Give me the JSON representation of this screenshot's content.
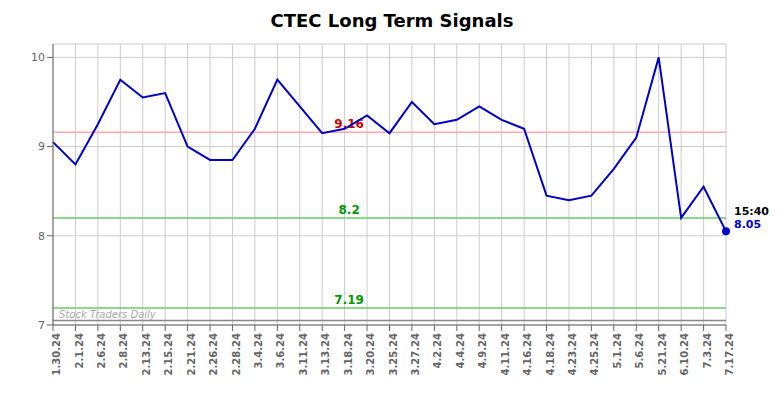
{
  "chart_data": {
    "type": "line",
    "title": "CTEC Long Term Signals",
    "categories": [
      "1.30.24",
      "2.1.24",
      "2.6.24",
      "2.8.24",
      "2.13.24",
      "2.15.24",
      "2.21.24",
      "2.26.24",
      "2.28.24",
      "3.4.24",
      "3.6.24",
      "3.11.24",
      "3.13.24",
      "3.18.24",
      "3.20.24",
      "3.25.24",
      "3.27.24",
      "4.2.24",
      "4.4.24",
      "4.9.24",
      "4.11.24",
      "4.16.24",
      "4.18.24",
      "4.23.24",
      "4.25.24",
      "5.1.24",
      "5.6.24",
      "5.21.24",
      "6.10.24",
      "7.3.24",
      "7.17.24"
    ],
    "values": [
      9.05,
      8.8,
      9.25,
      9.75,
      9.55,
      9.6,
      9.0,
      8.85,
      8.85,
      9.2,
      9.75,
      9.45,
      9.15,
      9.2,
      9.35,
      9.15,
      9.5,
      9.25,
      9.3,
      9.45,
      9.3,
      9.2,
      8.45,
      8.4,
      8.45,
      8.75,
      9.1,
      10.0,
      8.2,
      8.55,
      8.05
    ],
    "color": "#0000cc",
    "ylim": [
      7.0,
      10.15
    ],
    "yticks": [
      7,
      8,
      9,
      10
    ],
    "grid": true,
    "hlines": [
      {
        "y": 9.16,
        "color": "#ffaaaa",
        "label": "9.16",
        "label_color": "#cc0000"
      },
      {
        "y": 8.2,
        "color": "#66cc66",
        "label": "8.2",
        "label_color": "#009900"
      },
      {
        "y": 7.19,
        "color": "#66cc66",
        "label": "7.19",
        "label_color": "#009900"
      },
      {
        "y": 7.05,
        "color": "#888888",
        "label": "Stock Traders Daily",
        "label_color": "#aaaaaa"
      }
    ],
    "last_point": {
      "marker": "circle",
      "color": "#0000cc",
      "time": "15:40",
      "value_label": "8.05"
    }
  }
}
